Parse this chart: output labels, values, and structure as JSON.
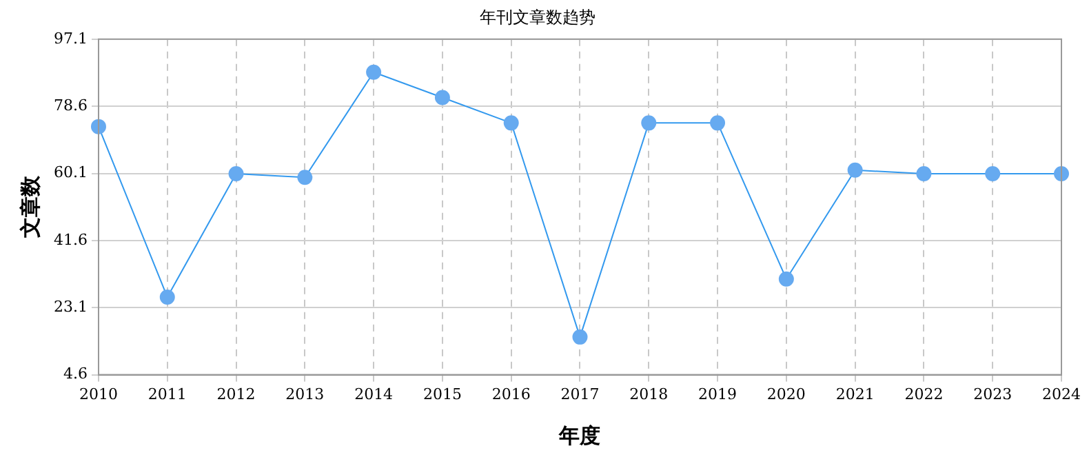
{
  "chart_data": {
    "type": "line",
    "title": "年刊文章数趋势",
    "xlabel": "年度",
    "ylabel": "文章数",
    "categories": [
      "2010",
      "2011",
      "2012",
      "2013",
      "2014",
      "2015",
      "2016",
      "2017",
      "2018",
      "2019",
      "2020",
      "2021",
      "2022",
      "2023",
      "2024"
    ],
    "series": [
      {
        "color": "#3399ee",
        "values": [
          73,
          26,
          60,
          59,
          88,
          81,
          74,
          15,
          74,
          74,
          31,
          61,
          60,
          60,
          60
        ]
      }
    ],
    "ylim": [
      4.6,
      97.1
    ],
    "yticks": [
      4.6,
      23.1,
      41.6,
      60.1,
      78.6,
      97.1
    ],
    "grid": true,
    "legend": false,
    "marker": "circle",
    "line_style": "solid"
  }
}
